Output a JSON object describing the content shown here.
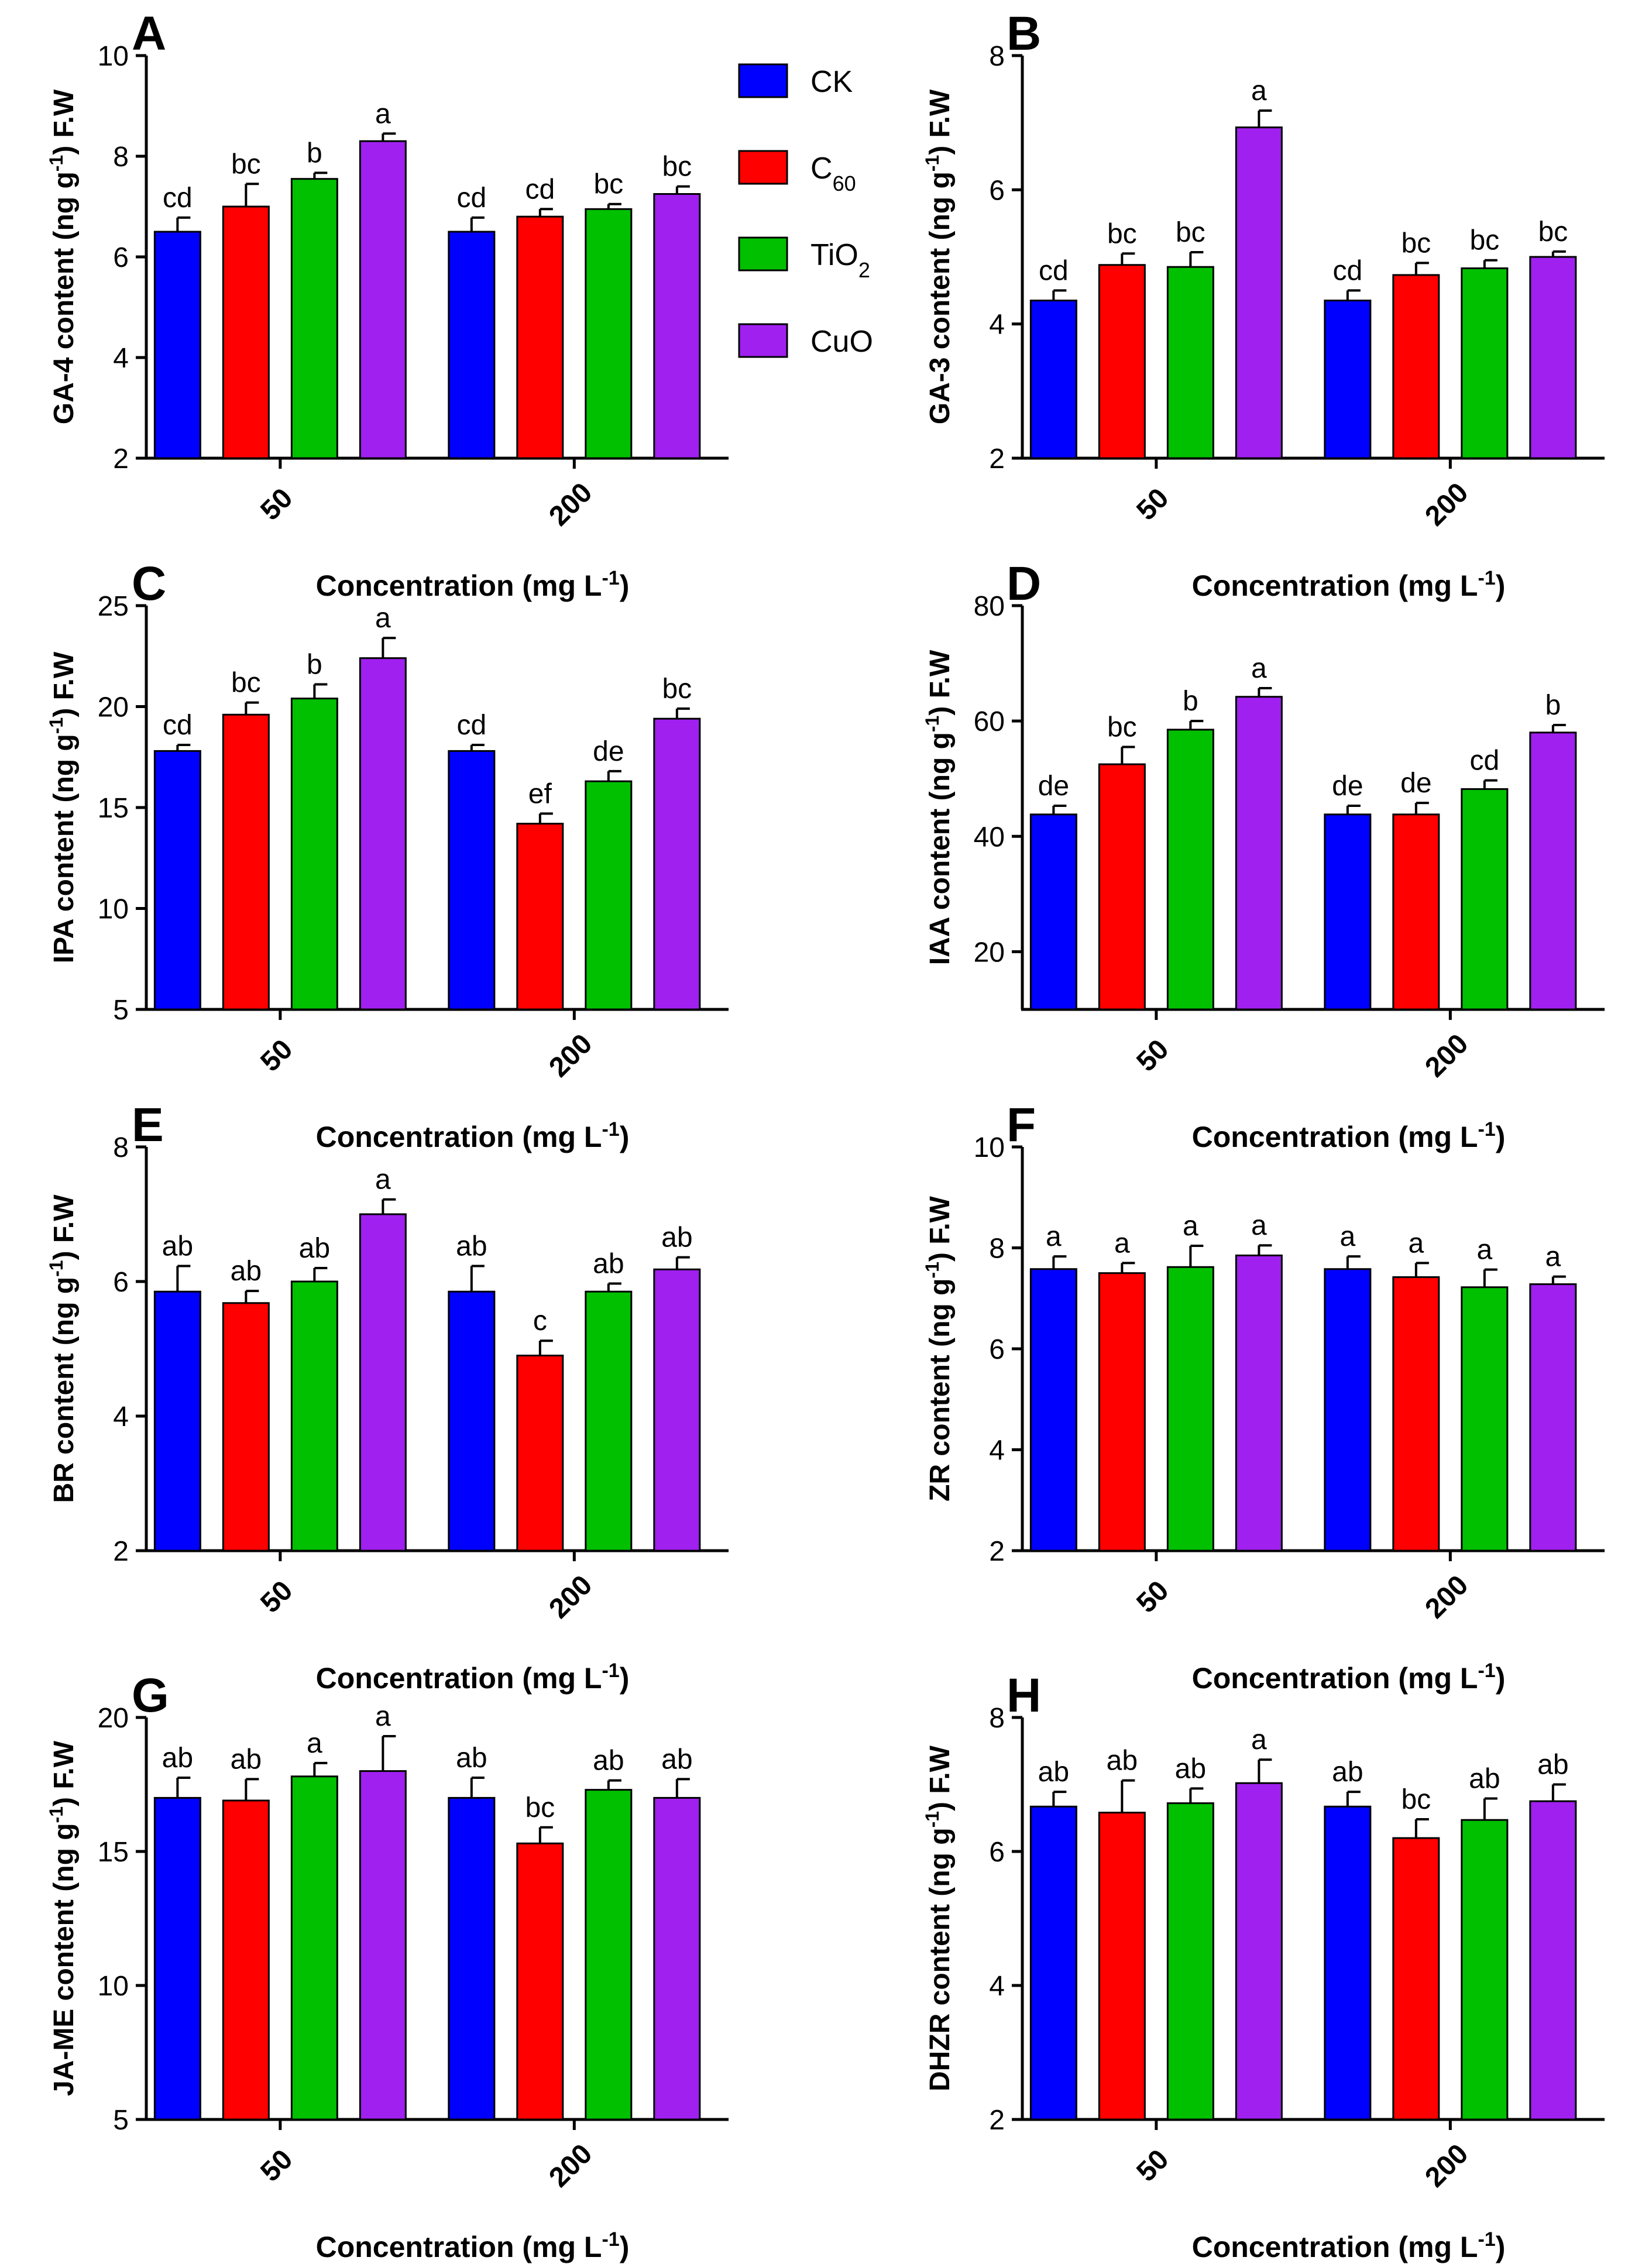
{
  "legend": {
    "entries": [
      {
        "label": "CK",
        "color": "#0000ff"
      },
      {
        "label": "C",
        "sub": "60",
        "color": "#ff0000"
      },
      {
        "label": "TiO",
        "sub": "2",
        "color": "#00c000"
      },
      {
        "label": "CuO",
        "color": "#a020f0"
      }
    ]
  },
  "chart_data": [
    {
      "type": "bar",
      "panel": "A",
      "ylabel": "GA-4 content (ng g-1) F.W",
      "xlabel": "Concentration (mg L-1)",
      "categories": [
        "50",
        "200"
      ],
      "ylim": [
        2,
        10
      ],
      "yticks": [
        2,
        4,
        6,
        8,
        10
      ],
      "series": [
        {
          "name": "CK",
          "values": [
            6.5,
            6.5
          ],
          "errors": [
            0.28,
            0.28
          ],
          "letters": [
            "cd",
            "cd"
          ]
        },
        {
          "name": "C60",
          "values": [
            7.0,
            6.8
          ],
          "errors": [
            0.45,
            0.15
          ],
          "letters": [
            "bc",
            "cd"
          ]
        },
        {
          "name": "TiO2",
          "values": [
            7.55,
            6.95
          ],
          "errors": [
            0.12,
            0.1
          ],
          "letters": [
            "b",
            "bc"
          ]
        },
        {
          "name": "CuO",
          "values": [
            8.3,
            7.25
          ],
          "errors": [
            0.15,
            0.15
          ],
          "letters": [
            "a",
            "bc"
          ]
        }
      ]
    },
    {
      "type": "bar",
      "panel": "B",
      "ylabel": "GA-3 content (ng g-1) F.W",
      "xlabel": "Concentration (mg L-1)",
      "categories": [
        "50",
        "200"
      ],
      "ylim": [
        2,
        8
      ],
      "yticks": [
        2,
        4,
        6,
        8
      ],
      "series": [
        {
          "name": "CK",
          "values": [
            4.35,
            4.35
          ],
          "errors": [
            0.15,
            0.15
          ],
          "letters": [
            "cd",
            "cd"
          ]
        },
        {
          "name": "C60",
          "values": [
            4.88,
            4.73
          ],
          "errors": [
            0.17,
            0.18
          ],
          "letters": [
            "bc",
            "bc"
          ]
        },
        {
          "name": "TiO2",
          "values": [
            4.85,
            4.83
          ],
          "errors": [
            0.22,
            0.12
          ],
          "letters": [
            "bc",
            "bc"
          ]
        },
        {
          "name": "CuO",
          "values": [
            6.93,
            5.0
          ],
          "errors": [
            0.25,
            0.08
          ],
          "letters": [
            "a",
            "bc"
          ]
        }
      ]
    },
    {
      "type": "bar",
      "panel": "C",
      "ylabel": "IPA content (ng g-1) F.W",
      "xlabel": "Concentration (mg L-1)",
      "categories": [
        "50",
        "200"
      ],
      "ylim": [
        5,
        25
      ],
      "yticks": [
        5,
        10,
        15,
        20,
        25
      ],
      "series": [
        {
          "name": "CK",
          "values": [
            17.8,
            17.8
          ],
          "errors": [
            0.3,
            0.3
          ],
          "letters": [
            "cd",
            "cd"
          ]
        },
        {
          "name": "C60",
          "values": [
            19.6,
            14.2
          ],
          "errors": [
            0.6,
            0.5
          ],
          "letters": [
            "bc",
            "ef"
          ]
        },
        {
          "name": "TiO2",
          "values": [
            20.4,
            16.3
          ],
          "errors": [
            0.7,
            0.5
          ],
          "letters": [
            "b",
            "de"
          ]
        },
        {
          "name": "CuO",
          "values": [
            22.4,
            19.4
          ],
          "errors": [
            1.0,
            0.5
          ],
          "letters": [
            "a",
            "bc"
          ]
        }
      ]
    },
    {
      "type": "bar",
      "panel": "D",
      "ylabel": "IAA content (ng g-1) F.W",
      "xlabel": "Concentration (mg L-1)",
      "categories": [
        "50",
        "200"
      ],
      "ylim": [
        10,
        80
      ],
      "yticks": [
        20,
        40,
        60,
        80
      ],
      "series": [
        {
          "name": "CK",
          "values": [
            43.8,
            43.8
          ],
          "errors": [
            1.5,
            1.5
          ],
          "letters": [
            "de",
            "de"
          ]
        },
        {
          "name": "C60",
          "values": [
            52.5,
            43.8
          ],
          "errors": [
            3.0,
            2.0
          ],
          "letters": [
            "bc",
            "de"
          ]
        },
        {
          "name": "TiO2",
          "values": [
            58.5,
            48.2
          ],
          "errors": [
            1.5,
            1.5
          ],
          "letters": [
            "b",
            "cd"
          ]
        },
        {
          "name": "CuO",
          "values": [
            64.2,
            58.0
          ],
          "errors": [
            1.5,
            1.3
          ],
          "letters": [
            "a",
            "b"
          ]
        }
      ]
    },
    {
      "type": "bar",
      "panel": "E",
      "ylabel": "BR content (ng g-1) F.W",
      "xlabel": "Concentration (mg L-1)",
      "categories": [
        "50",
        "200"
      ],
      "ylim": [
        2,
        8
      ],
      "yticks": [
        2,
        4,
        6,
        8
      ],
      "series": [
        {
          "name": "CK",
          "values": [
            5.85,
            5.85
          ],
          "errors": [
            0.38,
            0.38
          ],
          "letters": [
            "ab",
            "ab"
          ]
        },
        {
          "name": "C60",
          "values": [
            5.68,
            4.9
          ],
          "errors": [
            0.18,
            0.22
          ],
          "letters": [
            "ab",
            "c"
          ]
        },
        {
          "name": "TiO2",
          "values": [
            6.0,
            5.85
          ],
          "errors": [
            0.2,
            0.12
          ],
          "letters": [
            "ab",
            "ab"
          ]
        },
        {
          "name": "CuO",
          "values": [
            7.0,
            6.18
          ],
          "errors": [
            0.22,
            0.18
          ],
          "letters": [
            "a",
            "ab"
          ]
        }
      ]
    },
    {
      "type": "bar",
      "panel": "F",
      "ylabel": "ZR content (ng g-1) F.W",
      "xlabel": "Concentration (mg L-1)",
      "categories": [
        "50",
        "200"
      ],
      "ylim": [
        2,
        10
      ],
      "yticks": [
        2,
        4,
        6,
        8,
        10
      ],
      "series": [
        {
          "name": "CK",
          "values": [
            7.58,
            7.58
          ],
          "errors": [
            0.25,
            0.25
          ],
          "letters": [
            "a",
            "a"
          ]
        },
        {
          "name": "C60",
          "values": [
            7.5,
            7.42
          ],
          "errors": [
            0.2,
            0.28
          ],
          "letters": [
            "a",
            "a"
          ]
        },
        {
          "name": "TiO2",
          "values": [
            7.62,
            7.22
          ],
          "errors": [
            0.42,
            0.35
          ],
          "letters": [
            "a",
            "a"
          ]
        },
        {
          "name": "CuO",
          "values": [
            7.85,
            7.28
          ],
          "errors": [
            0.2,
            0.15
          ],
          "letters": [
            "a",
            "a"
          ]
        }
      ]
    },
    {
      "type": "bar",
      "panel": "G",
      "ylabel": "JA-ME content (ng g-1) F.W",
      "xlabel": "Concentration (mg L-1)",
      "categories": [
        "50",
        "200"
      ],
      "ylim": [
        5,
        20
      ],
      "yticks": [
        5,
        10,
        15,
        20
      ],
      "series": [
        {
          "name": "CK",
          "values": [
            17.0,
            17.0
          ],
          "errors": [
            0.75,
            0.75
          ],
          "letters": [
            "ab",
            "ab"
          ]
        },
        {
          "name": "C60",
          "values": [
            16.9,
            15.3
          ],
          "errors": [
            0.8,
            0.6
          ],
          "letters": [
            "ab",
            "bc"
          ]
        },
        {
          "name": "TiO2",
          "values": [
            17.8,
            17.3
          ],
          "errors": [
            0.5,
            0.35
          ],
          "letters": [
            "a",
            "ab"
          ]
        },
        {
          "name": "CuO",
          "values": [
            18.0,
            17.0
          ],
          "errors": [
            1.3,
            0.7
          ],
          "letters": [
            "a",
            "ab"
          ]
        }
      ]
    },
    {
      "type": "bar",
      "panel": "H",
      "ylabel": "DHZR content (ng g-1) F.W",
      "xlabel": "Concentration (mg L-1)",
      "categories": [
        "50",
        "200"
      ],
      "ylim": [
        2,
        8
      ],
      "yticks": [
        2,
        4,
        6,
        8
      ],
      "series": [
        {
          "name": "CK",
          "values": [
            6.67,
            6.67
          ],
          "errors": [
            0.22,
            0.22
          ],
          "letters": [
            "ab",
            "ab"
          ]
        },
        {
          "name": "C60",
          "values": [
            6.58,
            6.2
          ],
          "errors": [
            0.48,
            0.28
          ],
          "letters": [
            "ab",
            "bc"
          ]
        },
        {
          "name": "TiO2",
          "values": [
            6.72,
            6.47
          ],
          "errors": [
            0.22,
            0.32
          ],
          "letters": [
            "ab",
            "ab"
          ]
        },
        {
          "name": "CuO",
          "values": [
            7.02,
            6.75
          ],
          "errors": [
            0.35,
            0.25
          ],
          "letters": [
            "a",
            "ab"
          ]
        }
      ]
    }
  ]
}
